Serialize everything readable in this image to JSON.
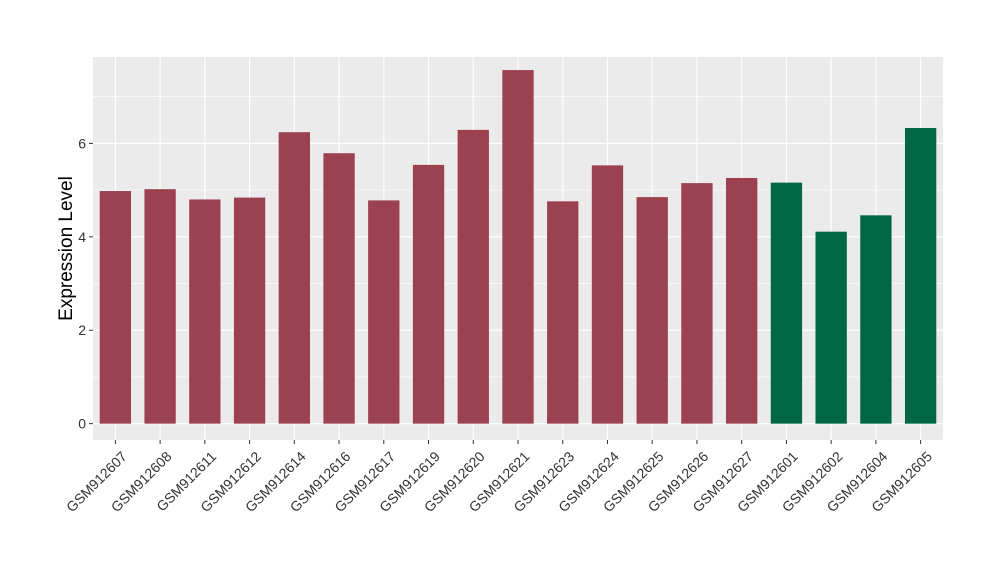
{
  "chart_data": {
    "type": "bar",
    "ylabel": "Expression Level",
    "xlabel": "",
    "ylim": [
      -0.35,
      7.85
    ],
    "y_ticks": [
      0,
      2,
      4,
      6
    ],
    "grid": true,
    "panel_background": "#ebebeb",
    "grid_color": "#ffffff",
    "categories": [
      "GSM912607",
      "GSM912608",
      "GSM912611",
      "GSM912612",
      "GSM912614",
      "GSM912616",
      "GSM912617",
      "GSM912619",
      "GSM912620",
      "GSM912621",
      "GSM912623",
      "GSM912624",
      "GSM912625",
      "GSM912626",
      "GSM912627",
      "GSM912601",
      "GSM912602",
      "GSM912604",
      "GSM912605"
    ],
    "values": [
      4.98,
      5.02,
      4.8,
      4.84,
      6.24,
      5.79,
      4.78,
      5.54,
      6.29,
      7.57,
      4.76,
      5.53,
      4.85,
      5.15,
      5.26,
      5.16,
      4.11,
      4.46,
      6.33
    ],
    "bar_colors": [
      "#9b4150",
      "#9b4150",
      "#9b4150",
      "#9b4150",
      "#9b4150",
      "#9b4150",
      "#9b4150",
      "#9b4150",
      "#9b4150",
      "#9b4150",
      "#9b4150",
      "#9b4150",
      "#9b4150",
      "#9b4150",
      "#9b4150",
      "#006644",
      "#006644",
      "#006644",
      "#006644"
    ]
  }
}
